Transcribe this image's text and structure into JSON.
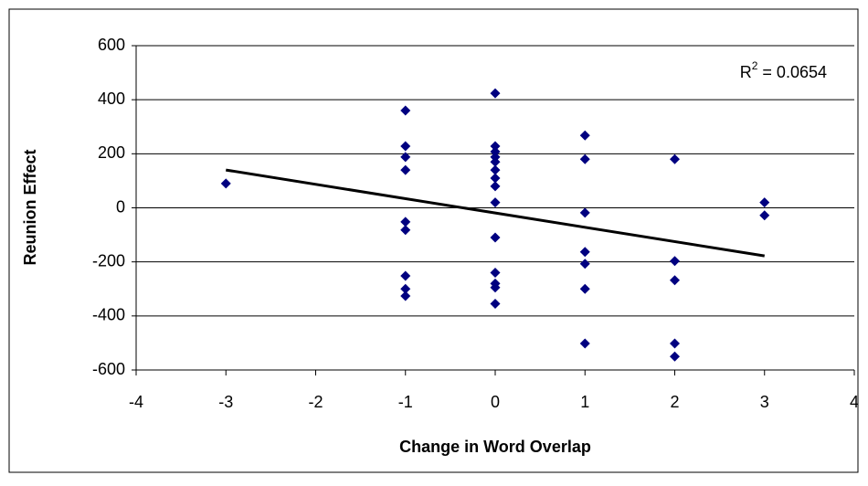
{
  "chart_data": {
    "type": "scatter",
    "xlabel": "Change in Word Overlap",
    "ylabel": "Reunion Effect",
    "x": [
      -3,
      -1,
      -1,
      -1,
      -1,
      -1,
      -1,
      -1,
      -1,
      -1,
      0,
      0,
      0,
      0,
      0,
      0,
      0,
      0,
      0,
      0,
      0,
      0,
      0,
      0,
      1,
      1,
      1,
      1,
      1,
      1,
      1,
      2,
      2,
      2,
      2,
      2,
      3,
      3
    ],
    "values": [
      90,
      360,
      228,
      188,
      140,
      -52,
      -82,
      -252,
      -300,
      -326,
      424,
      228,
      208,
      188,
      170,
      140,
      110,
      80,
      20,
      -110,
      -240,
      -280,
      -295,
      -355,
      268,
      180,
      -18,
      -163,
      -207,
      -300,
      -502,
      180,
      -197,
      -268,
      -502,
      -550,
      20,
      -28
    ],
    "color": "#000080",
    "trendline": {
      "x": [
        -3,
        3
      ],
      "y": [
        140,
        -178
      ],
      "color": "#000000"
    },
    "annotation": {
      "prefix": "R",
      "superscript": "2",
      "suffix": " = 0.0654"
    },
    "xlim": [
      -4,
      4
    ],
    "xticks": [
      -4,
      -3,
      -2,
      -1,
      0,
      1,
      2,
      3,
      4
    ],
    "ylim": [
      -600,
      600
    ],
    "yticks": [
      -600,
      -400,
      -200,
      0,
      200,
      400,
      600
    ],
    "grid": true
  }
}
